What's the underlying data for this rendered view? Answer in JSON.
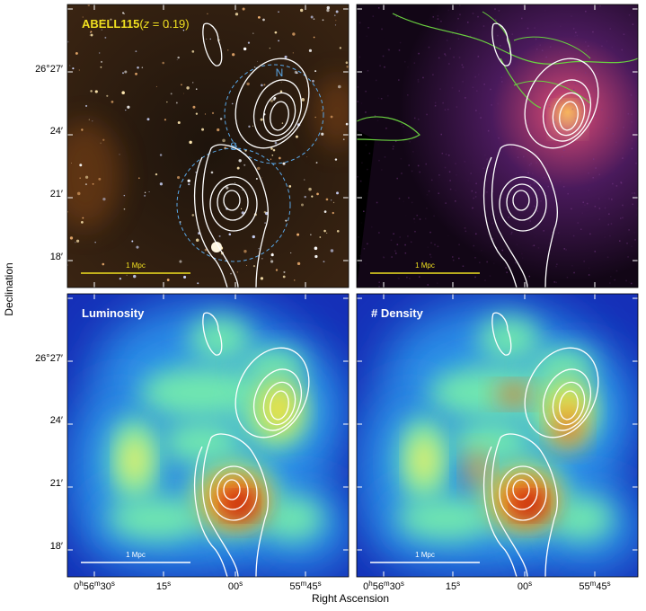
{
  "axes": {
    "y_label": "Declination",
    "x_label": "Right Ascension",
    "y_ticks": [
      "26°27′",
      "24′",
      "21′",
      "18′"
    ],
    "x_ticks": [
      [
        "0",
        "h",
        "56",
        "m",
        "30",
        "s"
      ],
      [
        "15",
        "s"
      ],
      [
        "00",
        "s"
      ],
      [
        "55",
        "m",
        "45",
        "s"
      ]
    ]
  },
  "panels": [
    {
      "title": "ABELL115",
      "redshift": [
        "(",
        "z",
        " = 0.19)"
      ],
      "markers": [
        "N",
        "S"
      ],
      "scale_bar": "1 Mpc"
    },
    {
      "scale_bar": "1 Mpc"
    },
    {
      "title": "Luminosity",
      "scale_bar": "1 Mpc"
    },
    {
      "title": "# Density",
      "scale_bar": "1 Mpc"
    }
  ]
}
